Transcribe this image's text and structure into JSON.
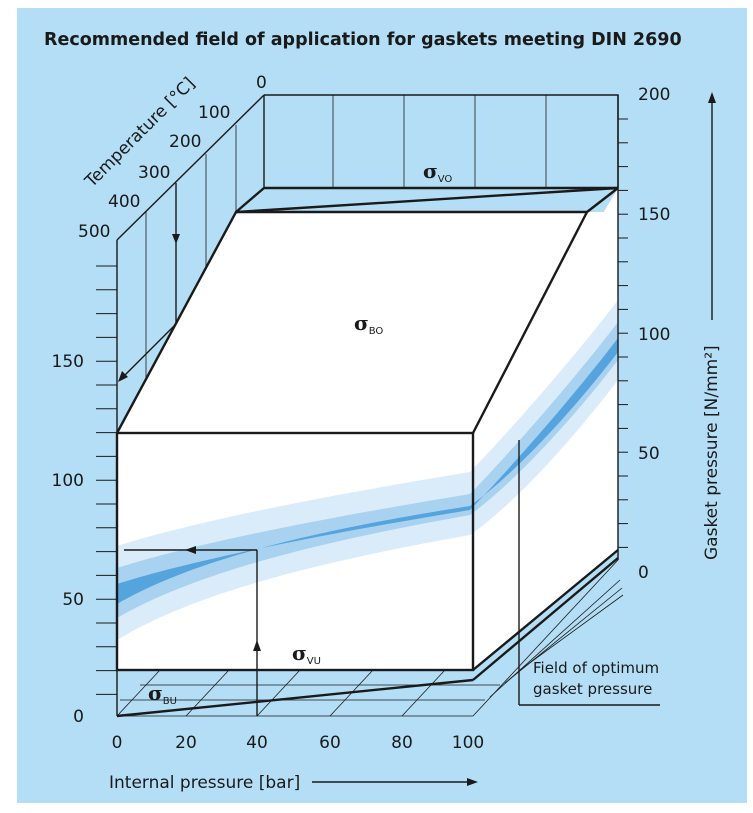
{
  "title": "Recommended field of application for gaskets meeting DIN 2690",
  "colors": {
    "background": "#b3def5",
    "band_core": "#3b92d6",
    "band_light": "#cfe6f8"
  },
  "temperature_axis": {
    "label": "Temperature [°C]",
    "ticks": [
      "0",
      "100",
      "200",
      "300",
      "400",
      "500"
    ]
  },
  "gasket_pressure_axis": {
    "label": "Gasket pressure [N/mm²]",
    "ticks": [
      "200",
      "150",
      "100",
      "50",
      "0"
    ]
  },
  "left_axis": {
    "ticks": [
      "150",
      "100",
      "50",
      "0"
    ]
  },
  "internal_pressure_axis": {
    "label": "Internal pressure [bar]",
    "ticks": [
      "0",
      "20",
      "40",
      "60",
      "80",
      "100"
    ]
  },
  "sigma_labels": {
    "vo": {
      "symbol": "σ",
      "sub": "VO"
    },
    "bo": {
      "symbol": "σ",
      "sub": "BO"
    },
    "vu": {
      "symbol": "σ",
      "sub": "VU"
    },
    "bu": {
      "symbol": "σ",
      "sub": "BU"
    }
  },
  "field_label": {
    "line1": "Field of optimum",
    "line2": "gasket pressure"
  }
}
